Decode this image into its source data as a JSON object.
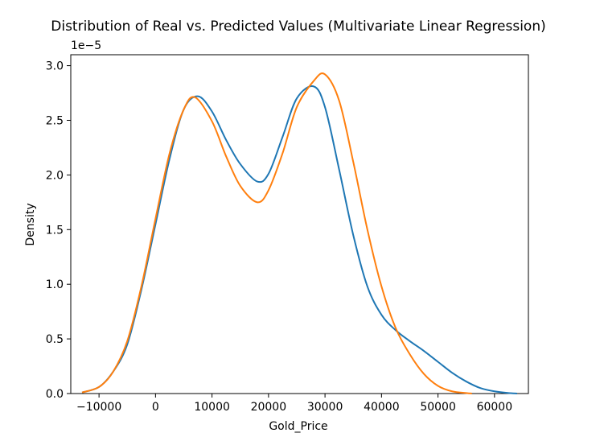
{
  "chart_data": {
    "type": "line",
    "title": "Distribution of Real vs. Predicted Values (Multivariate Linear Regression)",
    "xlabel": "Gold_Price",
    "ylabel": "Density",
    "y_offset_label": "1e−5",
    "xlim": [
      -15000,
      66000
    ],
    "ylim": [
      0,
      3.1
    ],
    "x_ticks": [
      -10000,
      0,
      10000,
      20000,
      30000,
      40000,
      50000,
      60000
    ],
    "x_tick_labels": [
      "−10000",
      "0",
      "10000",
      "20000",
      "30000",
      "40000",
      "50000",
      "60000"
    ],
    "y_ticks": [
      0,
      0.5,
      1.0,
      1.5,
      2.0,
      2.5,
      3.0
    ],
    "y_tick_labels": [
      "0.0",
      "0.5",
      "1.0",
      "1.5",
      "2.0",
      "2.5",
      "3.0"
    ],
    "grid": false,
    "series": [
      {
        "color": "#1f77b4",
        "x": [
          -13000,
          -10000,
          -7500,
          -5000,
          -2500,
          0,
          2500,
          5000,
          7500,
          10000,
          12500,
          15000,
          18000,
          20000,
          22500,
          25000,
          28000,
          30000,
          32500,
          35000,
          37500,
          40000,
          42500,
          45000,
          47500,
          50000,
          52500,
          55000,
          57500,
          60000,
          62500,
          64000
        ],
        "y": [
          0.01,
          0.06,
          0.2,
          0.45,
          0.95,
          1.55,
          2.15,
          2.6,
          2.72,
          2.58,
          2.32,
          2.1,
          1.94,
          2.01,
          2.35,
          2.7,
          2.81,
          2.62,
          2.05,
          1.45,
          0.98,
          0.72,
          0.58,
          0.48,
          0.39,
          0.29,
          0.19,
          0.11,
          0.05,
          0.02,
          0.005,
          0.0
        ]
      },
      {
        "color": "#ff7f0e",
        "x": [
          -13000,
          -10000,
          -7500,
          -5000,
          -2500,
          0,
          2500,
          5000,
          7000,
          10000,
          12500,
          15000,
          18000,
          20000,
          22500,
          25000,
          28000,
          30000,
          32500,
          35000,
          37500,
          40000,
          42500,
          45000,
          47500,
          50000,
          52500,
          55000,
          56000
        ],
        "y": [
          0.01,
          0.06,
          0.2,
          0.48,
          0.98,
          1.6,
          2.2,
          2.6,
          2.71,
          2.49,
          2.17,
          1.9,
          1.75,
          1.86,
          2.2,
          2.62,
          2.86,
          2.92,
          2.68,
          2.12,
          1.5,
          0.98,
          0.6,
          0.36,
          0.18,
          0.07,
          0.02,
          0.005,
          0.0
        ]
      }
    ]
  }
}
